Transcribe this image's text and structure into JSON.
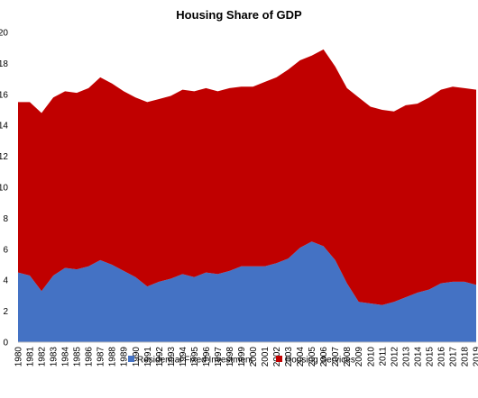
{
  "chart_data": {
    "type": "area",
    "stacked": true,
    "title": "Housing Share of GDP",
    "xlabel": "",
    "ylabel": "",
    "ylim": [
      0,
      20
    ],
    "yticks": [
      "0",
      "2",
      "4",
      "6",
      "8",
      "10",
      "12",
      "14",
      "16",
      "18",
      "20"
    ],
    "x": [
      "1980",
      "1981",
      "1982",
      "1983",
      "1984",
      "1985",
      "1986",
      "1987",
      "1988",
      "1989",
      "1990",
      "1991",
      "1992",
      "1993",
      "1994",
      "1995",
      "1996",
      "1997",
      "1998",
      "1999",
      "2000",
      "2001",
      "2002",
      "2003",
      "2004",
      "2005",
      "2006",
      "2007",
      "2008",
      "2009",
      "2010",
      "2011",
      "2012",
      "2013",
      "2014",
      "2015",
      "2016",
      "2017",
      "2018",
      "2019"
    ],
    "grid": false,
    "legend_position": "bottom",
    "series": [
      {
        "name": "Residential Fixed Investment",
        "color": "#4472C4",
        "values": [
          4.5,
          4.3,
          3.3,
          4.3,
          4.8,
          4.7,
          4.9,
          5.3,
          5.0,
          4.6,
          4.2,
          3.6,
          3.9,
          4.1,
          4.4,
          4.2,
          4.5,
          4.4,
          4.6,
          4.9,
          4.9,
          4.9,
          5.1,
          5.4,
          6.1,
          6.5,
          6.2,
          5.3,
          3.8,
          2.6,
          2.5,
          2.4,
          2.6,
          2.9,
          3.2,
          3.4,
          3.8,
          3.9,
          3.9,
          3.7
        ]
      },
      {
        "name": "Housing Services",
        "color": "#C00000",
        "values": [
          11.0,
          11.2,
          11.5,
          11.5,
          11.4,
          11.4,
          11.5,
          11.8,
          11.7,
          11.6,
          11.6,
          11.9,
          11.8,
          11.8,
          11.9,
          12.0,
          11.9,
          11.8,
          11.8,
          11.6,
          11.6,
          11.9,
          12.0,
          12.2,
          12.1,
          12.0,
          12.7,
          12.5,
          12.6,
          13.2,
          12.7,
          12.6,
          12.3,
          12.4,
          12.2,
          12.4,
          12.5,
          12.6,
          12.5,
          12.6
        ]
      }
    ]
  }
}
